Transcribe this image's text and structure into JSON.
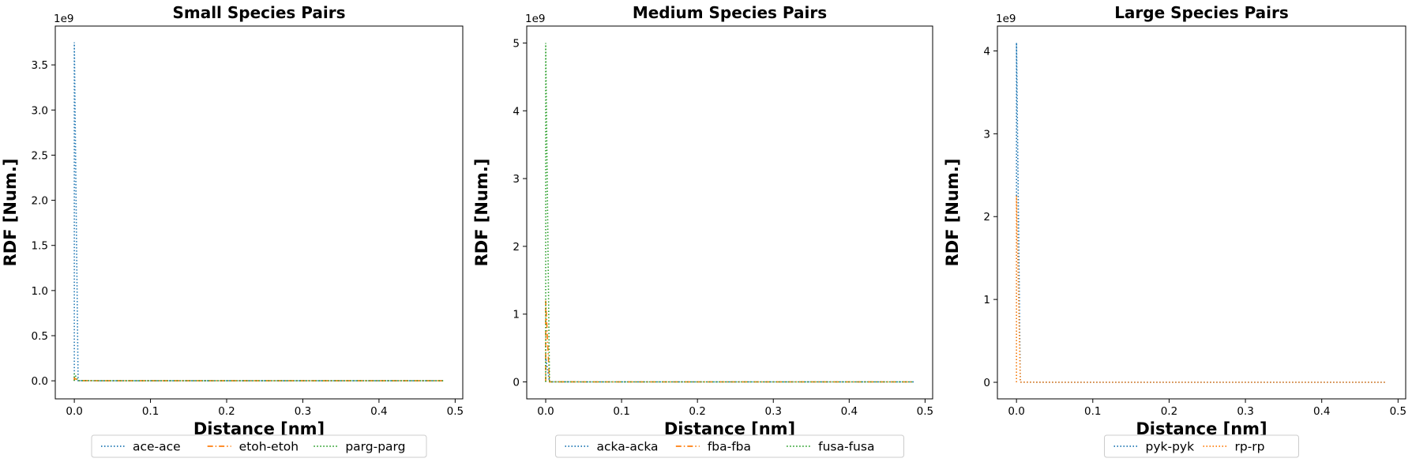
{
  "chart_data": [
    {
      "type": "line",
      "title": "Small Species Pairs",
      "xlabel": "Distance [nm]",
      "ylabel": "RDF [Num.]",
      "y_offset_label": "1e9",
      "xlim": [
        -0.025,
        0.51
      ],
      "ylim": [
        -0.2,
        3.93
      ],
      "xticks": [
        0.0,
        0.1,
        0.2,
        0.3,
        0.4,
        0.5
      ],
      "xtick_labels": [
        "0.0",
        "0.1",
        "0.2",
        "0.3",
        "0.4",
        "0.5"
      ],
      "yticks": [
        0.0,
        0.5,
        1.0,
        1.5,
        2.0,
        2.5,
        3.0,
        3.5
      ],
      "ytick_labels": [
        "0.0",
        "0.5",
        "1.0",
        "1.5",
        "2.0",
        "2.5",
        "3.0",
        "3.5"
      ],
      "legend_position": "below",
      "grid": false,
      "series": [
        {
          "name": "ace-ace",
          "color": "#1f77b4",
          "linestyle": "dotted",
          "x": [
            0.0,
            0.0,
            0.005,
            0.05,
            0.1,
            0.2,
            0.3,
            0.4,
            0.485
          ],
          "y": [
            0,
            3.75,
            0.002,
            0.0,
            0.0,
            0.0,
            0.0,
            0.0,
            0.0
          ]
        },
        {
          "name": "etoh-etoh",
          "color": "#ff7f0e",
          "linestyle": "dashdot",
          "x": [
            0.0,
            0.0,
            0.005,
            0.05,
            0.1,
            0.2,
            0.3,
            0.4,
            0.485
          ],
          "y": [
            0,
            0.03,
            0.002,
            0.0,
            0.0,
            0.0,
            0.0,
            0.0,
            0.0
          ]
        },
        {
          "name": "parg-parg",
          "color": "#2ca02c",
          "linestyle": "dotted",
          "x": [
            0.0,
            0.0,
            0.005,
            0.05,
            0.1,
            0.2,
            0.3,
            0.4,
            0.485
          ],
          "y": [
            0,
            0.08,
            0.002,
            0.0,
            0.0,
            0.0,
            0.0,
            0.0,
            0.0
          ]
        }
      ]
    },
    {
      "type": "line",
      "title": "Medium Species Pairs",
      "xlabel": "Distance [nm]",
      "ylabel": "RDF [Num.]",
      "y_offset_label": "1e9",
      "xlim": [
        -0.025,
        0.51
      ],
      "ylim": [
        -0.25,
        5.25
      ],
      "xticks": [
        0.0,
        0.1,
        0.2,
        0.3,
        0.4,
        0.5
      ],
      "xtick_labels": [
        "0.0",
        "0.1",
        "0.2",
        "0.3",
        "0.4",
        "0.5"
      ],
      "yticks": [
        0,
        1,
        2,
        3,
        4,
        5
      ],
      "ytick_labels": [
        "0",
        "1",
        "2",
        "3",
        "4",
        "5"
      ],
      "legend_position": "below",
      "grid": false,
      "series": [
        {
          "name": "acka-acka",
          "color": "#1f77b4",
          "linestyle": "dotted",
          "x": [
            0.0,
            0.0,
            0.005,
            0.05,
            0.1,
            0.2,
            0.3,
            0.4,
            0.485
          ],
          "y": [
            0,
            0.35,
            0.002,
            0.0,
            0.0,
            0.0,
            0.0,
            0.0,
            0.0
          ]
        },
        {
          "name": "fba-fba",
          "color": "#ff7f0e",
          "linestyle": "dashdot",
          "x": [
            0.0,
            0.0,
            0.005,
            0.05,
            0.1,
            0.2,
            0.3,
            0.4,
            0.485
          ],
          "y": [
            0,
            1.2,
            0.002,
            0.0,
            0.0,
            0.0,
            0.0,
            0.0,
            0.0
          ]
        },
        {
          "name": "fusa-fusa",
          "color": "#2ca02c",
          "linestyle": "dotted",
          "x": [
            0.0,
            0.0,
            0.005,
            0.05,
            0.1,
            0.2,
            0.3,
            0.4,
            0.485
          ],
          "y": [
            0,
            5.0,
            0.002,
            0.0,
            0.0,
            0.0,
            0.0,
            0.0,
            0.0
          ]
        }
      ]
    },
    {
      "type": "line",
      "title": "Large Species Pairs",
      "xlabel": "Distance [nm]",
      "ylabel": "RDF [Num.]",
      "y_offset_label": "1e9",
      "xlim": [
        -0.025,
        0.51
      ],
      "ylim": [
        -0.2,
        4.3
      ],
      "xticks": [
        0.0,
        0.1,
        0.2,
        0.3,
        0.4,
        0.5
      ],
      "xtick_labels": [
        "0.0",
        "0.1",
        "0.2",
        "0.3",
        "0.4",
        "0.5"
      ],
      "yticks": [
        0,
        1,
        2,
        3,
        4
      ],
      "ytick_labels": [
        "0",
        "1",
        "2",
        "3",
        "4"
      ],
      "legend_position": "below",
      "grid": false,
      "series": [
        {
          "name": "pyk-pyk",
          "color": "#1f77b4",
          "linestyle": "dotted",
          "x": [
            0.0,
            0.0,
            0.005,
            0.05,
            0.1,
            0.2,
            0.3,
            0.4,
            0.485
          ],
          "y": [
            0,
            4.1,
            0.002,
            0.0,
            0.0,
            0.0,
            0.0,
            0.0,
            0.0
          ]
        },
        {
          "name": "rp-rp",
          "color": "#ff7f0e",
          "linestyle": "dotted",
          "x": [
            0.0,
            0.0,
            0.005,
            0.05,
            0.1,
            0.2,
            0.3,
            0.4,
            0.485
          ],
          "y": [
            0,
            2.25,
            0.002,
            0.0,
            0.0,
            0.0,
            0.0,
            0.0,
            0.0
          ]
        }
      ]
    }
  ]
}
